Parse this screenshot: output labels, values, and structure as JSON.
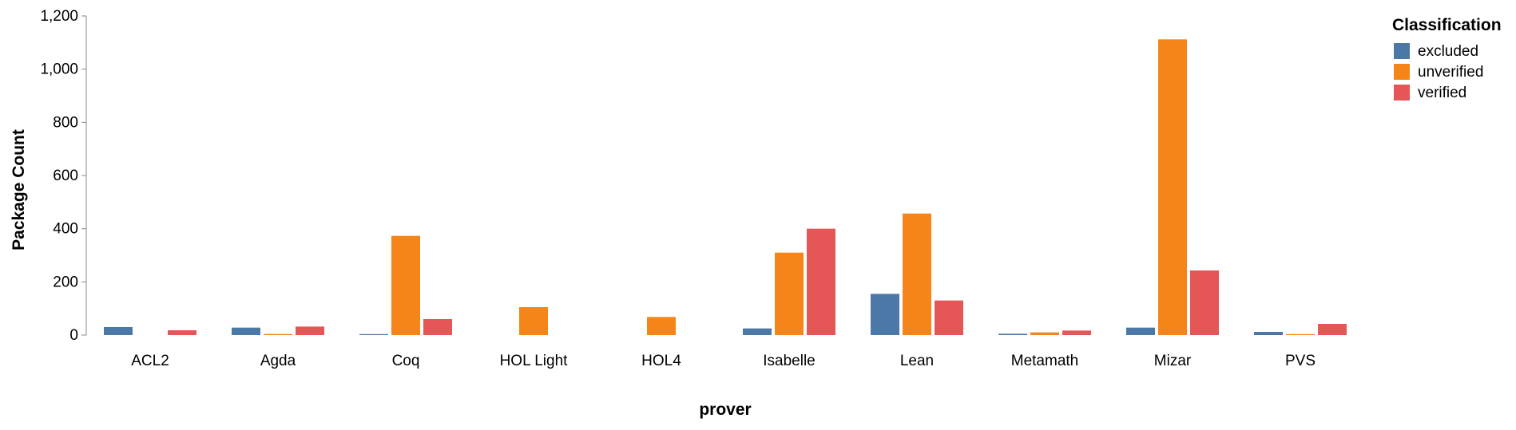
{
  "chart_data": {
    "type": "bar",
    "xlabel": "prover",
    "ylabel": "Package Count",
    "ylim": [
      0,
      1200
    ],
    "yticks": [
      0,
      200,
      400,
      600,
      800,
      1000,
      1200
    ],
    "grid": false,
    "legend": {
      "title": "Classification",
      "placement": "top-right"
    },
    "categories": [
      "ACL2",
      "Agda",
      "Coq",
      "HOL Light",
      "HOL4",
      "Isabelle",
      "Lean",
      "Metamath",
      "Mizar",
      "PVS"
    ],
    "series": [
      {
        "name": "excluded",
        "color": "#4c78a8",
        "values": [
          30,
          28,
          2,
          0,
          0,
          25,
          155,
          5,
          28,
          12
        ]
      },
      {
        "name": "unverified",
        "color": "#f58518",
        "values": [
          0,
          4,
          373,
          105,
          68,
          310,
          457,
          10,
          1112,
          2
        ]
      },
      {
        "name": "verified",
        "color": "#e45756",
        "values": [
          18,
          32,
          60,
          0,
          0,
          400,
          130,
          17,
          243,
          42
        ]
      }
    ]
  }
}
